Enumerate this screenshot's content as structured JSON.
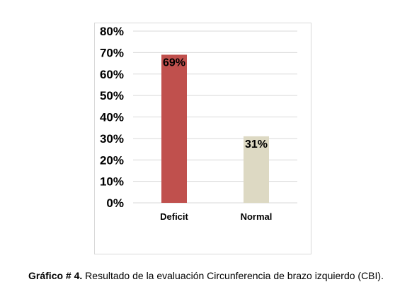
{
  "chart_data": {
    "type": "bar",
    "categories": [
      "Deficit",
      "Normal"
    ],
    "values": [
      69,
      31
    ],
    "data_labels": [
      "69%",
      "31%"
    ],
    "colors": [
      "#c0504d",
      "#ddd9c3"
    ],
    "ylim": [
      0,
      80
    ],
    "yticks": [
      0,
      10,
      20,
      30,
      40,
      50,
      60,
      70,
      80
    ],
    "ytick_labels": [
      "0%",
      "10%",
      "20%",
      "30%",
      "40%",
      "50%",
      "60%",
      "70%",
      "80%"
    ],
    "grid": true,
    "title": "",
    "xlabel": "",
    "ylabel": ""
  },
  "caption": {
    "label": "Gráfico # 4.",
    "text": " Resultado de la evaluación Circunferencia de brazo izquierdo (CBI)."
  }
}
